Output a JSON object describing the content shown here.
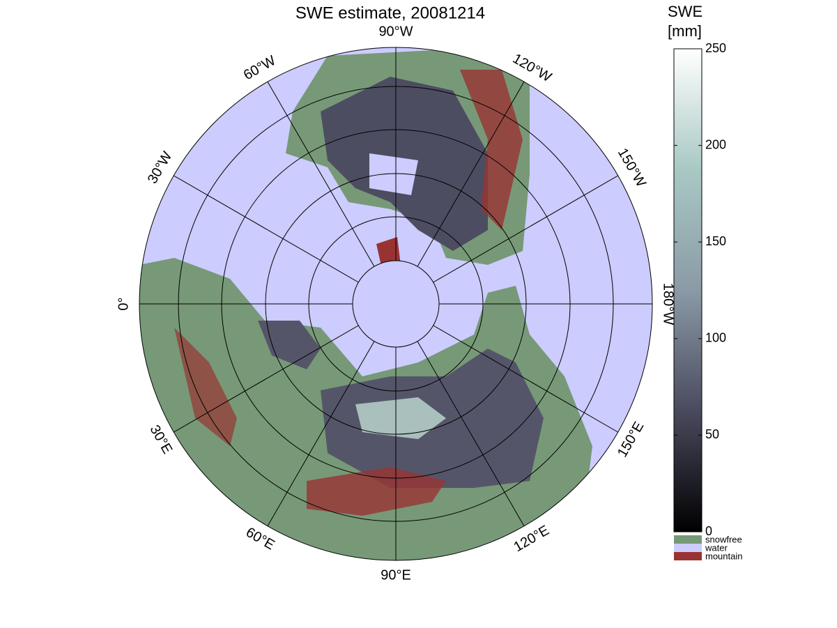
{
  "title": "SWE estimate, 20081214",
  "meridian_labels": [
    {
      "text": "90°W",
      "angle": 0
    },
    {
      "text": "120°W",
      "angle": 30
    },
    {
      "text": "150°W",
      "angle": 60
    },
    {
      "text": "180°W",
      "angle": 90
    },
    {
      "text": "150°E",
      "angle": 120
    },
    {
      "text": "120°E",
      "angle": 150
    },
    {
      "text": "90°E",
      "angle": 180
    },
    {
      "text": "60°E",
      "angle": 210
    },
    {
      "text": "30°E",
      "angle": 240
    },
    {
      "text": "0°",
      "angle": 270
    },
    {
      "text": "30°W",
      "angle": 300
    },
    {
      "text": "60°W",
      "angle": 330
    }
  ],
  "colorbar": {
    "title": [
      "SWE",
      "[mm]"
    ],
    "lim": [
      0,
      250
    ],
    "ticks": [
      0,
      50,
      100,
      150,
      200,
      250
    ],
    "colors": [
      "#000000",
      "#4a4a5e",
      "#8a9aa6",
      "#a9c8c4",
      "#ffffff"
    ]
  },
  "legend": [
    {
      "name": "snowfree",
      "color": "#779977"
    },
    {
      "name": "water",
      "color": "#ccccff"
    },
    {
      "name": "mountain",
      "color": "#993333"
    }
  ]
}
